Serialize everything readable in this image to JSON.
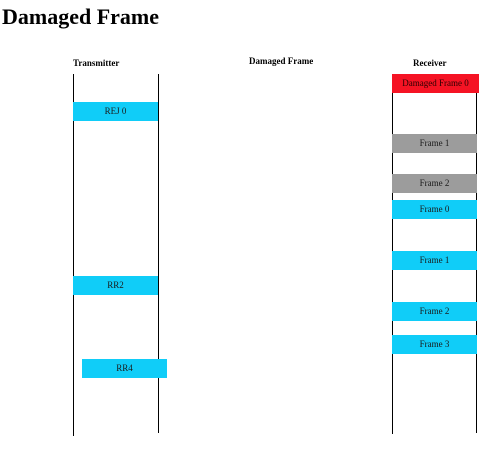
{
  "page": {
    "title": "Damaged Frame"
  },
  "columns": {
    "transmitter": "Transmitter",
    "middle": "Damaged Frame",
    "receiver": "Receiver"
  },
  "transmitter_boxes": [
    {
      "label": "REJ 0",
      "color": "#10cdf8"
    },
    {
      "label": "RR2",
      "color": "#10cdf8"
    },
    {
      "label": "RR4",
      "color": "#10cdf8"
    }
  ],
  "receiver_boxes": [
    {
      "label": "Damaged Frame 0",
      "color": "#f51324"
    },
    {
      "label": "Frame 1",
      "color": "#9c9c9c"
    },
    {
      "label": "Frame 2",
      "color": "#9c9c9c"
    },
    {
      "label": "Frame 0",
      "color": "#10cdf8"
    },
    {
      "label": "Frame 1",
      "color": "#10cdf8"
    },
    {
      "label": "Frame 2",
      "color": "#10cdf8"
    },
    {
      "label": "Frame 3",
      "color": "#10cdf8"
    }
  ]
}
